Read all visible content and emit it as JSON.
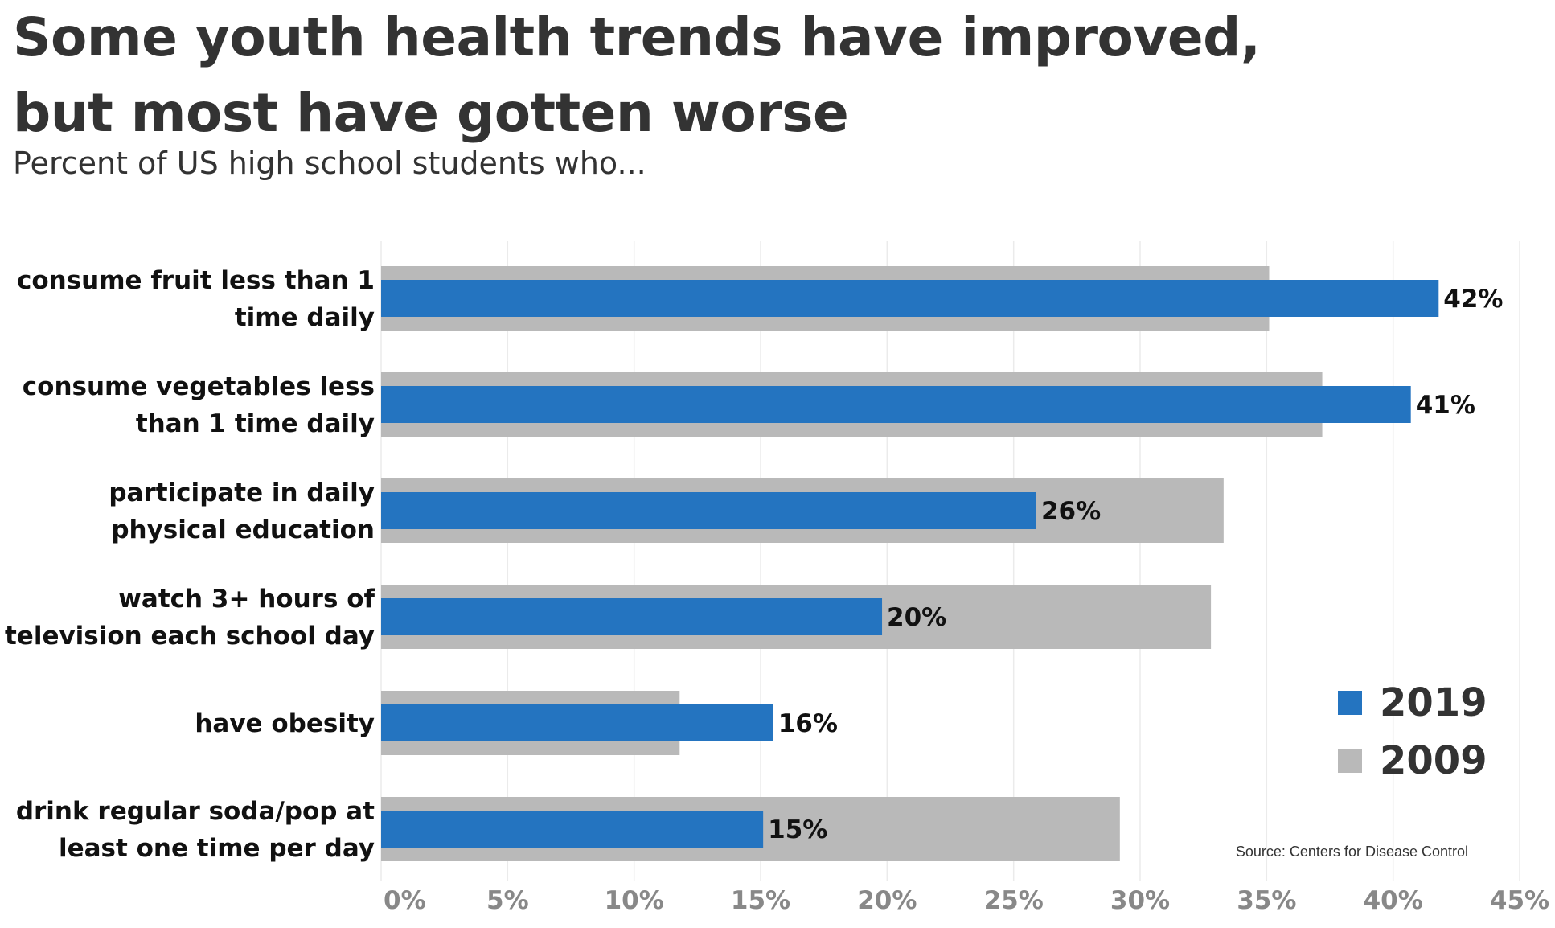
{
  "title_line1": "Some youth health trends have improved,",
  "title_line2": "but most have gotten worse",
  "subtitle": "Percent of US high school students who...",
  "source": "Source: Centers for Disease Control",
  "colors": {
    "series_2019": "#2474C0",
    "series_2009": "#B9B9B9",
    "text": "#333333",
    "grid": "#EBEBEB",
    "axis_tick": "#888888"
  },
  "chart_data": {
    "type": "bar",
    "orientation": "horizontal",
    "categories": [
      [
        "consume fruit less than 1",
        "time daily"
      ],
      [
        "consume vegetables less",
        "than 1 time daily"
      ],
      [
        "participate in daily",
        "physical education"
      ],
      [
        "watch 3+ hours of",
        "television each school day"
      ],
      [
        "have obesity"
      ],
      [
        "drink regular soda/pop at",
        "least one time per day"
      ]
    ],
    "series": [
      {
        "name": "2009",
        "values": [
          35.1,
          37.2,
          33.3,
          32.8,
          11.8,
          29.2
        ]
      },
      {
        "name": "2019",
        "values": [
          41.8,
          40.7,
          25.9,
          19.8,
          15.5,
          15.1
        ],
        "labels": [
          "42%",
          "41%",
          "26%",
          "20%",
          "16%",
          "15%"
        ]
      }
    ],
    "xlim": [
      0,
      45
    ],
    "xticks": [
      0,
      5,
      10,
      15,
      20,
      25,
      30,
      35,
      40,
      45
    ],
    "xtick_labels": [
      "0%",
      "5%",
      "10%",
      "15%",
      "20%",
      "25%",
      "30%",
      "35%",
      "40%",
      "45%"
    ],
    "grid": true,
    "legend": [
      "2019",
      "2009"
    ],
    "legend_position": "bottom-right"
  }
}
